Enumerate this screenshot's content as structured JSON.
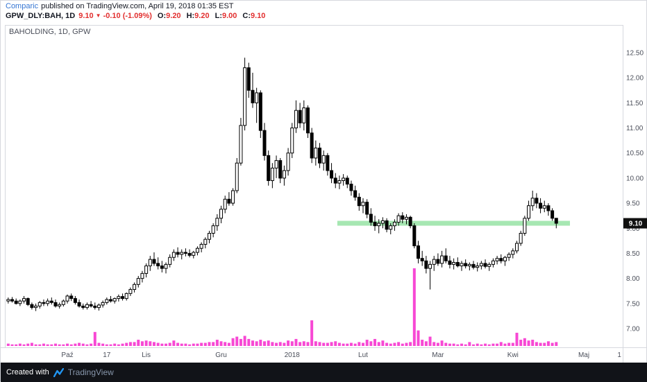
{
  "header": {
    "author": "Comparic",
    "published": "published on TradingView.com, April 19, 2018 01:35 EST",
    "symbol": "GPW_DLY:BAH, 1D",
    "last_price": "9.10",
    "direction_icon": "▼",
    "change": "-0.10 (-1.09%)",
    "ohlc": [
      {
        "label": "O:",
        "value": "9.20"
      },
      {
        "label": "H:",
        "value": "9.20"
      },
      {
        "label": "L:",
        "value": "9.00"
      },
      {
        "label": "C:",
        "value": "9.10"
      }
    ]
  },
  "chart": {
    "legend": "BAHOLDING, 1D, GPW"
  },
  "footer": {
    "created_with": "Created with",
    "brand": "TradingView"
  },
  "colors": {
    "author_link": "#3575d3",
    "negative_red": "#e22f2f",
    "text": "#131722",
    "axis_text": "#4a4e59",
    "brand_blue": "#2196f3"
  },
  "chart_data": {
    "type": "candlestick",
    "title": "BAHOLDING, 1D, GPW",
    "symbol": "GPW_DLY:BAH",
    "interval": "1D",
    "exchange": "GPW",
    "y_axis": {
      "min": 7.0,
      "max": 12.5,
      "step": 0.5
    },
    "x_axis": {
      "total_slots": 156,
      "ticks": [
        {
          "label": "Paź",
          "i": 15
        },
        {
          "label": "17",
          "i": 25
        },
        {
          "label": "Lis",
          "i": 35
        },
        {
          "label": "Gru",
          "i": 54
        },
        {
          "label": "2018",
          "i": 72
        },
        {
          "label": "Lut",
          "i": 90
        },
        {
          "label": "Mar",
          "i": 109
        },
        {
          "label": "Kwi",
          "i": 128
        },
        {
          "label": "Maj",
          "i": 146
        },
        {
          "label": "1",
          "i": 155
        }
      ]
    },
    "candles": [
      [
        7.55,
        7.62,
        7.5,
        7.58
      ],
      [
        7.58,
        7.63,
        7.52,
        7.55
      ],
      [
        7.55,
        7.6,
        7.48,
        7.5
      ],
      [
        7.5,
        7.58,
        7.45,
        7.55
      ],
      [
        7.55,
        7.65,
        7.5,
        7.6
      ],
      [
        7.6,
        7.62,
        7.45,
        7.48
      ],
      [
        7.48,
        7.52,
        7.38,
        7.42
      ],
      [
        7.42,
        7.5,
        7.35,
        7.45
      ],
      [
        7.45,
        7.55,
        7.4,
        7.52
      ],
      [
        7.52,
        7.58,
        7.45,
        7.5
      ],
      [
        7.5,
        7.6,
        7.45,
        7.55
      ],
      [
        7.55,
        7.62,
        7.48,
        7.52
      ],
      [
        7.52,
        7.58,
        7.42,
        7.45
      ],
      [
        7.45,
        7.52,
        7.4,
        7.48
      ],
      [
        7.48,
        7.58,
        7.44,
        7.55
      ],
      [
        7.55,
        7.68,
        7.5,
        7.65
      ],
      [
        7.65,
        7.7,
        7.55,
        7.6
      ],
      [
        7.6,
        7.65,
        7.48,
        7.52
      ],
      [
        7.52,
        7.58,
        7.42,
        7.45
      ],
      [
        7.45,
        7.5,
        7.38,
        7.42
      ],
      [
        7.42,
        7.52,
        7.38,
        7.48
      ],
      [
        7.48,
        7.55,
        7.42,
        7.45
      ],
      [
        7.45,
        7.52,
        7.38,
        7.42
      ],
      [
        7.42,
        7.5,
        7.36,
        7.47
      ],
      [
        7.47,
        7.56,
        7.42,
        7.52
      ],
      [
        7.52,
        7.62,
        7.48,
        7.58
      ],
      [
        7.58,
        7.65,
        7.52,
        7.55
      ],
      [
        7.55,
        7.62,
        7.5,
        7.6
      ],
      [
        7.6,
        7.68,
        7.54,
        7.64
      ],
      [
        7.64,
        7.7,
        7.56,
        7.6
      ],
      [
        7.6,
        7.72,
        7.56,
        7.7
      ],
      [
        7.7,
        7.82,
        7.65,
        7.78
      ],
      [
        7.78,
        7.92,
        7.72,
        7.88
      ],
      [
        7.88,
        8.05,
        7.82,
        8.0
      ],
      [
        8.0,
        8.15,
        7.92,
        8.1
      ],
      [
        8.1,
        8.3,
        8.02,
        8.25
      ],
      [
        8.25,
        8.45,
        8.15,
        8.38
      ],
      [
        8.38,
        8.52,
        8.25,
        8.3
      ],
      [
        8.3,
        8.42,
        8.18,
        8.25
      ],
      [
        8.25,
        8.35,
        8.12,
        8.2
      ],
      [
        8.2,
        8.32,
        8.1,
        8.28
      ],
      [
        8.28,
        8.48,
        8.22,
        8.42
      ],
      [
        8.42,
        8.58,
        8.35,
        8.52
      ],
      [
        8.52,
        8.62,
        8.42,
        8.48
      ],
      [
        8.48,
        8.58,
        8.38,
        8.52
      ],
      [
        8.52,
        8.6,
        8.44,
        8.5
      ],
      [
        8.5,
        8.58,
        8.42,
        8.46
      ],
      [
        8.46,
        8.55,
        8.4,
        8.52
      ],
      [
        8.52,
        8.64,
        8.46,
        8.6
      ],
      [
        8.6,
        8.72,
        8.52,
        8.68
      ],
      [
        8.68,
        8.82,
        8.6,
        8.78
      ],
      [
        8.78,
        8.95,
        8.7,
        8.9
      ],
      [
        8.9,
        9.1,
        8.82,
        9.05
      ],
      [
        9.05,
        9.28,
        8.95,
        9.2
      ],
      [
        9.2,
        9.45,
        9.1,
        9.38
      ],
      [
        9.38,
        9.65,
        9.3,
        9.58
      ],
      [
        9.58,
        9.72,
        9.45,
        9.5
      ],
      [
        9.5,
        9.8,
        9.45,
        9.75
      ],
      [
        9.75,
        10.4,
        9.7,
        10.3
      ],
      [
        10.3,
        11.2,
        10.25,
        11.05
      ],
      [
        11.05,
        12.4,
        10.95,
        12.2
      ],
      [
        12.2,
        12.3,
        11.6,
        11.75
      ],
      [
        11.75,
        12.1,
        11.4,
        11.5
      ],
      [
        11.5,
        11.8,
        11.1,
        11.7
      ],
      [
        11.7,
        11.75,
        10.8,
        10.95
      ],
      [
        10.95,
        11.1,
        10.35,
        10.45
      ],
      [
        10.45,
        10.55,
        9.85,
        9.95
      ],
      [
        9.95,
        10.3,
        9.8,
        10.2
      ],
      [
        10.2,
        10.45,
        10.0,
        10.35
      ],
      [
        10.35,
        10.4,
        9.9,
        10.0
      ],
      [
        10.0,
        10.25,
        9.85,
        10.15
      ],
      [
        10.15,
        10.6,
        10.05,
        10.5
      ],
      [
        10.5,
        11.1,
        10.4,
        11.0
      ],
      [
        11.0,
        11.55,
        10.9,
        11.35
      ],
      [
        11.35,
        11.5,
        11.0,
        11.1
      ],
      [
        11.1,
        11.55,
        10.95,
        11.4
      ],
      [
        11.4,
        11.45,
        10.8,
        10.9
      ],
      [
        10.9,
        11.0,
        10.3,
        10.4
      ],
      [
        10.4,
        10.75,
        10.25,
        10.6
      ],
      [
        10.6,
        10.7,
        10.2,
        10.3
      ],
      [
        10.3,
        10.55,
        10.15,
        10.45
      ],
      [
        10.45,
        10.5,
        10.05,
        10.15
      ],
      [
        10.15,
        10.3,
        9.9,
        10.0
      ],
      [
        10.0,
        10.1,
        9.8,
        9.9
      ],
      [
        9.9,
        10.05,
        9.78,
        9.95
      ],
      [
        9.95,
        10.08,
        9.85,
        10.0
      ],
      [
        10.0,
        10.05,
        9.8,
        9.88
      ],
      [
        9.88,
        9.95,
        9.65,
        9.75
      ],
      [
        9.75,
        9.85,
        9.55,
        9.62
      ],
      [
        9.62,
        9.7,
        9.35,
        9.45
      ],
      [
        9.45,
        9.6,
        9.3,
        9.52
      ],
      [
        9.52,
        9.58,
        9.2,
        9.28
      ],
      [
        9.28,
        9.4,
        9.05,
        9.12
      ],
      [
        9.12,
        9.25,
        8.95,
        9.05
      ],
      [
        9.05,
        9.18,
        8.9,
        9.1
      ],
      [
        9.1,
        9.22,
        9.0,
        9.15
      ],
      [
        9.15,
        9.2,
        8.92,
        8.98
      ],
      [
        8.98,
        9.1,
        8.88,
        9.05
      ],
      [
        9.05,
        9.18,
        8.95,
        9.12
      ],
      [
        9.12,
        9.3,
        9.05,
        9.25
      ],
      [
        9.25,
        9.32,
        9.1,
        9.18
      ],
      [
        9.18,
        9.28,
        9.08,
        9.22
      ],
      [
        9.22,
        9.25,
        9.0,
        9.05
      ],
      [
        9.05,
        9.1,
        8.6,
        8.65
      ],
      [
        8.65,
        8.75,
        8.3,
        8.4
      ],
      [
        8.4,
        8.55,
        8.25,
        8.35
      ],
      [
        8.35,
        8.45,
        8.1,
        8.2
      ],
      [
        8.2,
        8.35,
        7.78,
        8.28
      ],
      [
        8.28,
        8.45,
        8.15,
        8.38
      ],
      [
        8.38,
        8.5,
        8.25,
        8.3
      ],
      [
        8.3,
        8.55,
        8.22,
        8.45
      ],
      [
        8.45,
        8.6,
        8.3,
        8.35
      ],
      [
        8.35,
        8.45,
        8.2,
        8.28
      ],
      [
        8.28,
        8.4,
        8.18,
        8.32
      ],
      [
        8.32,
        8.42,
        8.22,
        8.25
      ],
      [
        8.25,
        8.35,
        8.15,
        8.3
      ],
      [
        8.3,
        8.38,
        8.2,
        8.25
      ],
      [
        8.25,
        8.32,
        8.16,
        8.28
      ],
      [
        8.28,
        8.35,
        8.18,
        8.22
      ],
      [
        8.22,
        8.32,
        8.14,
        8.25
      ],
      [
        8.25,
        8.35,
        8.18,
        8.3
      ],
      [
        8.3,
        8.38,
        8.2,
        8.24
      ],
      [
        8.24,
        8.32,
        8.15,
        8.28
      ],
      [
        8.28,
        8.4,
        8.22,
        8.35
      ],
      [
        8.35,
        8.45,
        8.28,
        8.4
      ],
      [
        8.4,
        8.48,
        8.3,
        8.35
      ],
      [
        8.35,
        8.45,
        8.25,
        8.42
      ],
      [
        8.42,
        8.52,
        8.35,
        8.48
      ],
      [
        8.48,
        8.6,
        8.4,
        8.55
      ],
      [
        8.55,
        8.75,
        8.5,
        8.7
      ],
      [
        8.7,
        8.95,
        8.65,
        8.9
      ],
      [
        8.9,
        9.25,
        8.85,
        9.2
      ],
      [
        9.2,
        9.55,
        9.15,
        9.45
      ],
      [
        9.45,
        9.75,
        9.35,
        9.6
      ],
      [
        9.6,
        9.7,
        9.4,
        9.5
      ],
      [
        9.5,
        9.6,
        9.3,
        9.4
      ],
      [
        9.4,
        9.55,
        9.32,
        9.45
      ],
      [
        9.45,
        9.5,
        9.25,
        9.35
      ],
      [
        9.35,
        9.4,
        9.15,
        9.2
      ],
      [
        9.2,
        9.2,
        9.0,
        9.1
      ]
    ],
    "volumes": [
      3,
      2,
      2,
      3,
      2,
      3,
      4,
      2,
      2,
      3,
      2,
      2,
      3,
      2,
      2,
      3,
      2,
      3,
      4,
      3,
      2,
      3,
      18,
      4,
      3,
      2,
      2,
      3,
      2,
      3,
      4,
      5,
      5,
      8,
      6,
      7,
      6,
      5,
      4,
      3,
      3,
      4,
      7,
      4,
      3,
      3,
      2,
      3,
      3,
      4,
      4,
      5,
      5,
      8,
      6,
      5,
      4,
      10,
      12,
      9,
      13,
      9,
      7,
      6,
      8,
      6,
      7,
      5,
      4,
      5,
      4,
      7,
      6,
      9,
      5,
      6,
      5,
      33,
      6,
      5,
      4,
      4,
      5,
      6,
      4,
      3,
      3,
      4,
      3,
      5,
      4,
      8,
      6,
      9,
      5,
      7,
      4,
      3,
      4,
      5,
      3,
      4,
      5,
      100,
      20,
      8,
      6,
      12,
      5,
      4,
      7,
      4,
      3,
      3,
      2,
      3,
      2,
      5,
      2,
      3,
      2,
      3,
      2,
      3,
      3,
      5,
      3,
      4,
      4,
      17,
      8,
      10,
      7,
      8,
      5,
      4,
      4,
      6,
      4,
      5
    ],
    "support_zone": {
      "price": 9.1,
      "start_index": 84,
      "end_index": 143,
      "color": "#97e3a5"
    },
    "price_tag": {
      "price": 9.1,
      "text": "9.10"
    },
    "colors": {
      "up": "#ffffff",
      "down": "#000000",
      "border": "#000000",
      "volume": "#f748d4",
      "frame": "#d6d8de",
      "tag_bg": "#101010"
    }
  }
}
